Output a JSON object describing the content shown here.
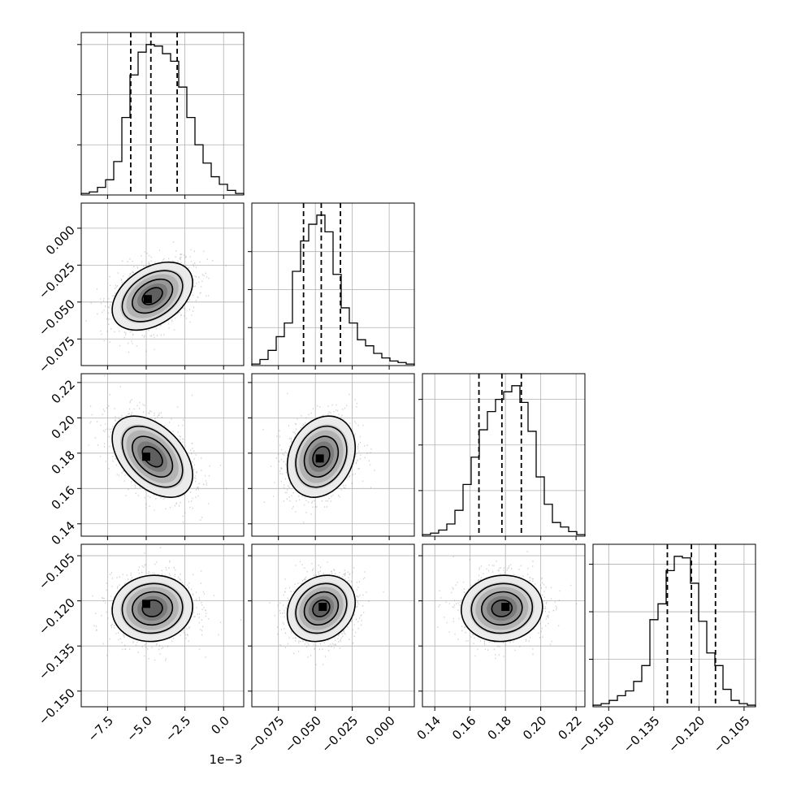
{
  "chart_data": {
    "type": "corner",
    "title": "",
    "grid": true,
    "parameters": [
      {
        "index": 0,
        "ticks": [
          -7.5,
          -5.0,
          -2.5,
          0.0
        ],
        "tick_labels": [
          "−7.5",
          "−5.0",
          "−2.5",
          "0.0"
        ],
        "range": [
          -9.2,
          1.3
        ],
        "offset_text": "1e−3",
        "quantiles": [
          -6.0,
          -4.7,
          -3.0
        ],
        "histogram": {
          "bin_edges_start": -9.2,
          "bin_width": 0.525,
          "counts": [
            1,
            2,
            5,
            10,
            22,
            51,
            79,
            94,
            99,
            98,
            93,
            88,
            71,
            51,
            33,
            21,
            12,
            7,
            3,
            1
          ]
        },
        "hist_ticks": [
          33,
          66,
          99
        ]
      },
      {
        "index": 1,
        "ticks": [
          -0.075,
          -0.05,
          -0.025,
          0.0
        ],
        "tick_labels": [
          "−0.075",
          "−0.050",
          "−0.025",
          "0.000"
        ],
        "range": [
          -0.093,
          0.017
        ],
        "quantiles": [
          -0.058,
          -0.046,
          -0.033
        ],
        "histogram": {
          "bin_edges_start": -0.093,
          "bin_width": 0.0055,
          "counts": [
            1,
            4,
            10,
            19,
            28,
            62,
            82,
            93,
            99,
            88,
            60,
            38,
            28,
            17,
            13,
            8,
            5,
            3,
            2,
            1
          ]
        },
        "hist_ticks": [
          25,
          50,
          75
        ]
      },
      {
        "index": 2,
        "ticks": [
          0.14,
          0.16,
          0.18,
          0.2,
          0.22
        ],
        "tick_labels": [
          "0.14",
          "0.16",
          "0.18",
          "0.20",
          "0.22"
        ],
        "range": [
          0.133,
          0.225
        ],
        "quantiles": [
          0.165,
          0.178,
          0.189
        ],
        "histogram": {
          "bin_edges_start": 0.133,
          "bin_width": 0.0046,
          "counts": [
            1,
            2,
            4,
            8,
            17,
            34,
            52,
            70,
            82,
            90,
            95,
            99,
            88,
            69,
            39,
            21,
            9,
            6,
            3,
            1
          ]
        },
        "hist_ticks": [
          30,
          60,
          90
        ]
      },
      {
        "index": 3,
        "ticks": [
          -0.15,
          -0.135,
          -0.12,
          -0.105
        ],
        "tick_labels": [
          "−0.150",
          "−0.135",
          "−0.120",
          "−0.105"
        ],
        "range": [
          -0.1552,
          -0.1012
        ],
        "quantiles": [
          -0.1305,
          -0.1225,
          -0.1145
        ],
        "histogram": {
          "bin_edges_start": -0.1552,
          "bin_width": 0.0027,
          "counts": [
            1,
            2,
            4,
            7,
            10,
            16,
            26,
            55,
            65,
            86,
            95,
            94,
            78,
            54,
            34,
            26,
            11,
            4,
            2,
            1
          ]
        },
        "hist_ticks": [
          30,
          60,
          90
        ]
      }
    ],
    "pairs": [
      {
        "row": 1,
        "col": 0,
        "mean": [
          -4.6,
          -0.046
        ],
        "std": [
          1.3,
          0.0115
        ],
        "corr": 0.4,
        "peak": [
          -4.9,
          -0.048
        ]
      },
      {
        "row": 2,
        "col": 0,
        "mean": [
          -4.6,
          0.178
        ],
        "std": [
          1.3,
          0.0115
        ],
        "corr": -0.45,
        "peak": [
          -5.0,
          0.178
        ]
      },
      {
        "row": 2,
        "col": 1,
        "mean": [
          -0.046,
          0.178
        ],
        "std": [
          0.0115,
          0.0115
        ],
        "corr": 0.22,
        "peak": [
          -0.047,
          0.177
        ]
      },
      {
        "row": 3,
        "col": 0,
        "mean": [
          -4.6,
          -0.1225
        ],
        "std": [
          1.3,
          0.0055
        ],
        "corr": 0.05,
        "peak": [
          -5.0,
          -0.121
        ]
      },
      {
        "row": 3,
        "col": 1,
        "mean": [
          -0.046,
          -0.1225
        ],
        "std": [
          0.0115,
          0.0055
        ],
        "corr": 0.18,
        "peak": [
          -0.045,
          -0.122
        ]
      },
      {
        "row": 3,
        "col": 2,
        "mean": [
          0.178,
          -0.1225
        ],
        "std": [
          0.0115,
          0.0055
        ],
        "corr": 0.05,
        "peak": [
          0.18,
          -0.122
        ]
      }
    ],
    "contour_levels_sigma": [
      0.5,
      1.0,
      1.5,
      2.0
    ],
    "colors": {
      "histogram_line": "#000000",
      "quantile_line": "#000000",
      "grid": "#b0b0b0",
      "scatter": "#7f7f7f",
      "density_max": "#000000",
      "background": "#ffffff"
    }
  }
}
